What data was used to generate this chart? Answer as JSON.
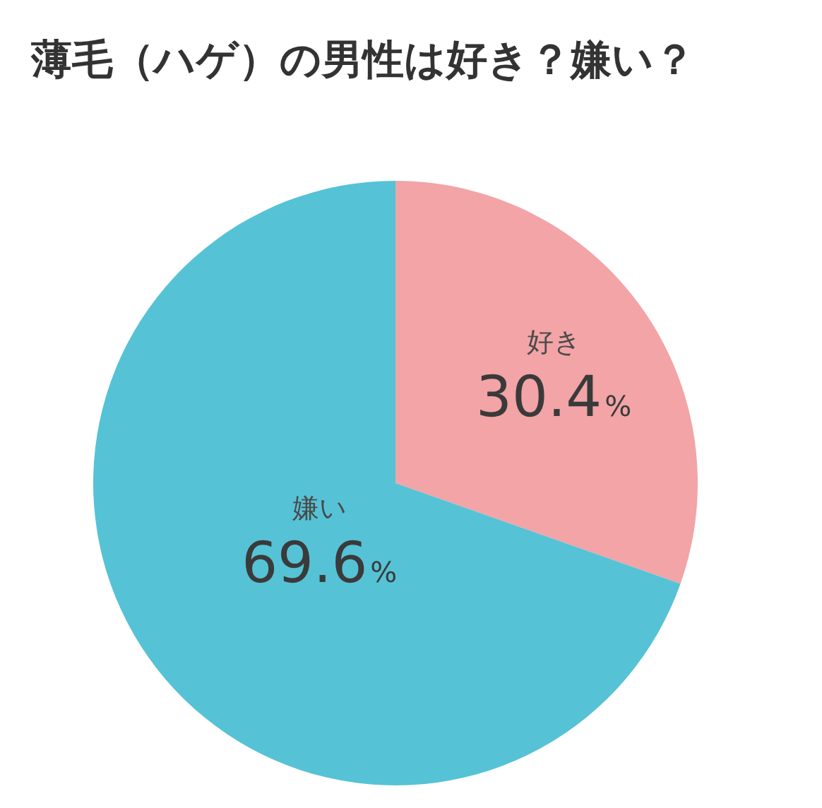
{
  "chart_data": {
    "type": "pie",
    "title": "薄毛（ハゲ）の男性は好き？嫌い？",
    "categories": [
      "好き",
      "嫌い"
    ],
    "values": [
      30.4,
      69.6
    ],
    "colors": [
      "#f2a4a7",
      "#56c2d6"
    ],
    "value_labels": [
      "30.4%",
      "69.6%"
    ]
  }
}
